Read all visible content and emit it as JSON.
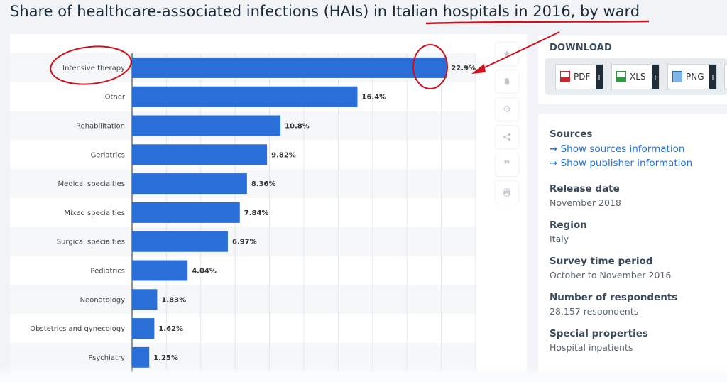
{
  "page": {
    "title_part1": "Share of healthcare-associated infections (HAIs) ",
    "title_part2": "in Italian hospitals in 2016",
    "title_part3": ", by ward"
  },
  "toolbar": {
    "icons": [
      "star-icon",
      "bell-icon",
      "gear-icon",
      "share-icon",
      "quote-icon",
      "print-icon"
    ]
  },
  "download": {
    "heading": "DOWNLOAD",
    "buttons": [
      {
        "label": "PDF",
        "plus": "+"
      },
      {
        "label": "XLS",
        "plus": "+"
      },
      {
        "label": "PNG",
        "plus": "+"
      }
    ]
  },
  "info": {
    "sources_head": "Sources",
    "show_sources": "Show sources information",
    "show_publisher": "Show publisher information",
    "release_head": "Release date",
    "release_val": "November 2018",
    "region_head": "Region",
    "region_val": "Italy",
    "survey_head": "Survey time period",
    "survey_val": "October to November 2016",
    "respondents_head": "Number of respondents",
    "respondents_val": "28,157 respondents",
    "special_head": "Special properties",
    "special_val": "Hospital inpatients"
  },
  "colors": {
    "bar": "#2a6fd8",
    "annotation": "#d0111b"
  },
  "chart_data": {
    "type": "bar",
    "orientation": "horizontal",
    "categories": [
      "Intensive therapy",
      "Other",
      "Rehabilitation",
      "Geriatrics",
      "Medical specialties",
      "Mixed specialties",
      "Surgical specialties",
      "Pediatrics",
      "Neonatology",
      "Obstetrics and gynecology",
      "Psychiatry"
    ],
    "values": [
      22.9,
      16.4,
      10.8,
      9.82,
      8.36,
      7.84,
      6.97,
      4.04,
      1.83,
      1.62,
      1.25
    ],
    "labels": [
      "22.9%",
      "16.4%",
      "10.8%",
      "9.82%",
      "8.36%",
      "7.84%",
      "6.97%",
      "4.04%",
      "1.83%",
      "1.62%",
      "1.25%"
    ],
    "xlim": [
      0,
      25
    ],
    "grid": true,
    "title": "Share of healthcare-associated infections (HAIs) in Italian hospitals in 2016, by ward"
  }
}
